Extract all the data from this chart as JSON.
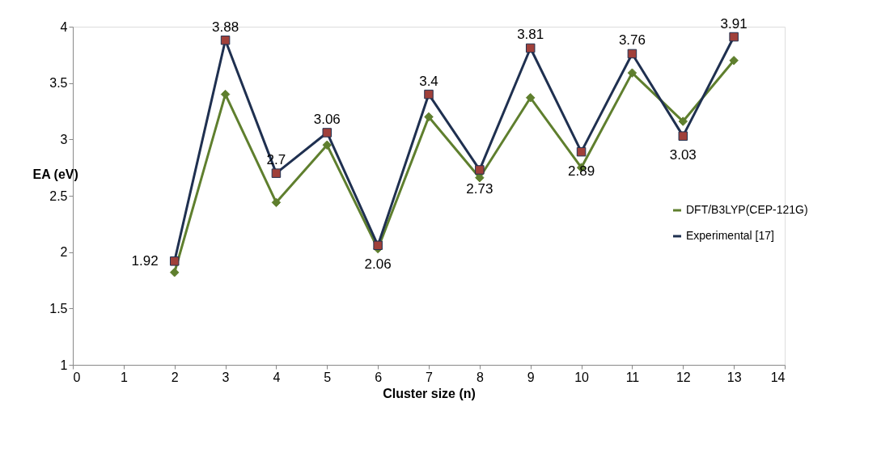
{
  "chart_data": {
    "type": "line",
    "xlabel": "Cluster size (n)",
    "ylabel": "EA (eV)",
    "x": [
      2,
      3,
      4,
      5,
      6,
      7,
      8,
      9,
      10,
      11,
      12,
      13
    ],
    "xlim": [
      0,
      14
    ],
    "xticks": [
      0,
      1,
      2,
      3,
      4,
      5,
      6,
      7,
      8,
      9,
      10,
      11,
      12,
      13,
      14
    ],
    "ylim": [
      1,
      4
    ],
    "yticks": [
      1,
      1.5,
      2,
      2.5,
      3,
      3.5,
      4
    ],
    "grid": false,
    "legend": "right",
    "line_style": "solid",
    "series": [
      {
        "name": "DFT/B3LYP(CEP-121G)",
        "color": "#5f7f2e",
        "marker": "diamond",
        "values": [
          1.82,
          3.4,
          2.44,
          2.95,
          2.03,
          3.2,
          2.66,
          3.37,
          2.75,
          3.59,
          3.16,
          3.7
        ]
      },
      {
        "name": "Experimental [17]",
        "color": "#1f3050",
        "marker": "square",
        "data_labels": true,
        "values": [
          1.92,
          3.88,
          2.7,
          3.06,
          2.06,
          3.4,
          2.73,
          3.81,
          2.89,
          3.76,
          3.03,
          3.91
        ]
      }
    ]
  }
}
